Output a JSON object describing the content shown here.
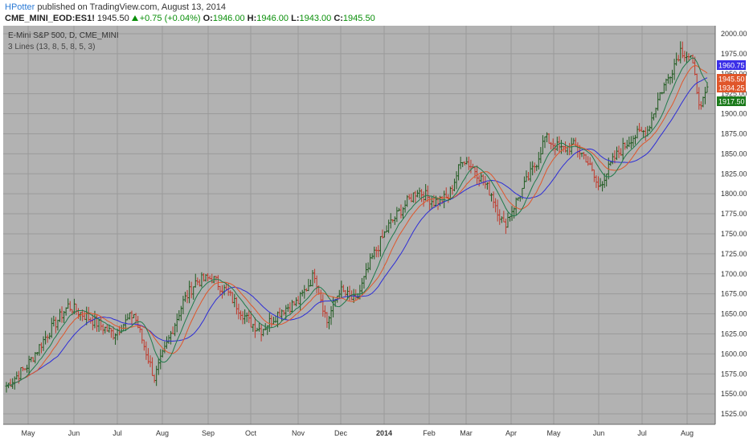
{
  "header": {
    "author": "HPotter",
    "published_text": "published on TradingView.com, August 13, 2014",
    "symbol": "CME_MINI_EOD:ES1!",
    "last": "1945.50",
    "change": "+0.75 (+0.04%)",
    "o_label": "O:",
    "o_value": "1946.00",
    "h_label": "H:",
    "h_value": "1946.00",
    "l_label": "L:",
    "l_value": "1943.00",
    "c_label": "C:",
    "c_value": "1945.50"
  },
  "colors": {
    "background": "#b2b2b2",
    "grid": "#9a9a9a",
    "up_bar": "#1f5a1f",
    "down_bar": "#c0392b",
    "line_blue": "#2d2dd6",
    "line_orange": "#e0562a",
    "line_green": "#1f7a4a"
  },
  "chart_data": {
    "type": "line",
    "title": "E-Mini S&P 500, D, CME_MINI",
    "indicator": "3 Lines (13, 8, 5, 8, 5, 3)",
    "xlabel": "",
    "ylabel": "",
    "x_months": [
      "May",
      "Jun",
      "Jul",
      "Aug",
      "Sep",
      "Oct",
      "Nov",
      "Dec",
      "2014",
      "Feb",
      "Mar",
      "Apr",
      "May",
      "Jun",
      "Jul",
      "Aug"
    ],
    "ylim": [
      1512,
      2010
    ],
    "y_ticks": [
      "2000.00",
      "1975.00",
      "1950.00",
      "1925.00",
      "1900.00",
      "1875.00",
      "1850.00",
      "1825.00",
      "1800.00",
      "1775.00",
      "1750.00",
      "1725.00",
      "1700.00",
      "1675.00",
      "1650.00",
      "1625.00",
      "1600.00",
      "1575.00",
      "1550.00",
      "1525.00"
    ],
    "grid": true,
    "price_anchor_x": [
      0,
      10,
      20,
      30,
      40,
      52,
      62,
      72,
      80,
      86,
      92,
      100,
      108,
      118,
      124,
      134,
      142,
      150,
      156,
      162,
      170,
      178,
      186,
      192,
      200,
      208,
      215,
      222,
      228,
      236,
      242,
      250,
      258,
      262,
      270,
      276,
      282,
      288,
      296,
      304,
      312,
      318,
      322,
      328
    ],
    "price_anchor_y": [
      1560,
      1585,
      1625,
      1660,
      1645,
      1625,
      1650,
      1570,
      1625,
      1665,
      1690,
      1695,
      1675,
      1640,
      1630,
      1655,
      1665,
      1700,
      1640,
      1680,
      1665,
      1720,
      1760,
      1780,
      1805,
      1790,
      1795,
      1845,
      1830,
      1800,
      1760,
      1800,
      1840,
      1870,
      1855,
      1860,
      1845,
      1808,
      1845,
      1870,
      1880,
      1925,
      1945,
      1980
    ],
    "price_anchor_y2": [
      1980,
      1970,
      1905,
      1930
    ],
    "price_anchor_x2": [
      328,
      333,
      338,
      341
    ],
    "bar_count": 342,
    "series": [
      {
        "name": "",
        "period": 13,
        "color_key": "line_blue"
      },
      {
        "name": "",
        "period": 8,
        "color_key": "line_orange"
      },
      {
        "name": "",
        "period": 5,
        "color_key": "line_green"
      }
    ],
    "price_labels": [
      {
        "text": "1960.75",
        "value": 1960.75,
        "color": "#3a2ee8"
      },
      {
        "text": "1945.50",
        "value": 1945.5,
        "color": "#e0562a"
      },
      {
        "text": "1934.25",
        "value": 1934.25,
        "color": "#e0562a"
      },
      {
        "text": "1917.50",
        "value": 1917.5,
        "color": "#1a7a1a"
      }
    ]
  }
}
